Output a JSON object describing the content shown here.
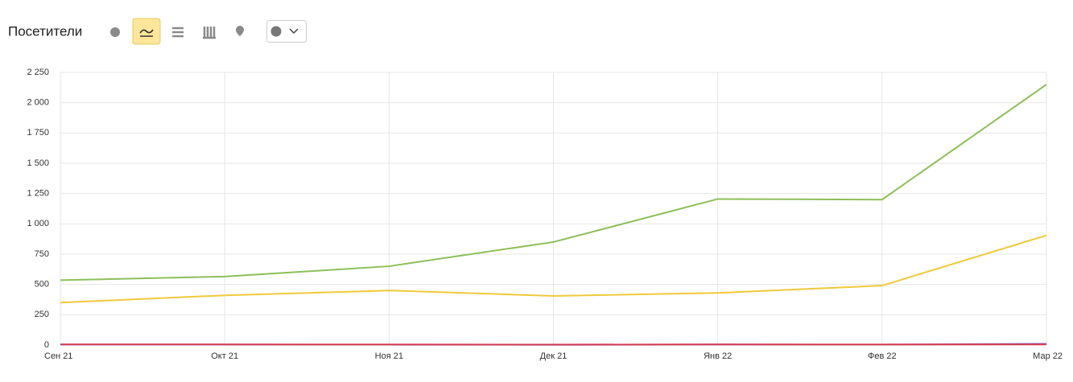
{
  "chart_data": {
    "type": "line",
    "title": "Посетители",
    "categories": [
      "Сен 21",
      "Окт 21",
      "Ноя 21",
      "Дек 21",
      "Янв 22",
      "Фев 22",
      "Мар 22"
    ],
    "series": [
      {
        "color": "#8cbf5a",
        "values": [
          535,
          565,
          650,
          850,
          1205,
          1200,
          2150
        ]
      },
      {
        "color": "#f0c93a",
        "values": [
          350,
          410,
          450,
          405,
          430,
          490,
          905
        ]
      },
      {
        "color": "#7d6fd6",
        "values": [
          3,
          3,
          3,
          2,
          4,
          3,
          10
        ]
      },
      {
        "color": "#d23a4f",
        "values": [
          5,
          5,
          4,
          3,
          5,
          4,
          5
        ]
      }
    ],
    "ylim": [
      0,
      2250
    ],
    "yticks": [
      0,
      250,
      500,
      750,
      {
        "value": 1000,
        "label": "1 000"
      },
      {
        "value": 1250,
        "label": "1 250"
      },
      {
        "value": 1500,
        "label": "1 500"
      },
      {
        "value": 1750,
        "label": "1 750"
      },
      {
        "value": 2000,
        "label": "2 000"
      },
      {
        "value": 2250,
        "label": "2 250"
      }
    ],
    "grid": true
  }
}
